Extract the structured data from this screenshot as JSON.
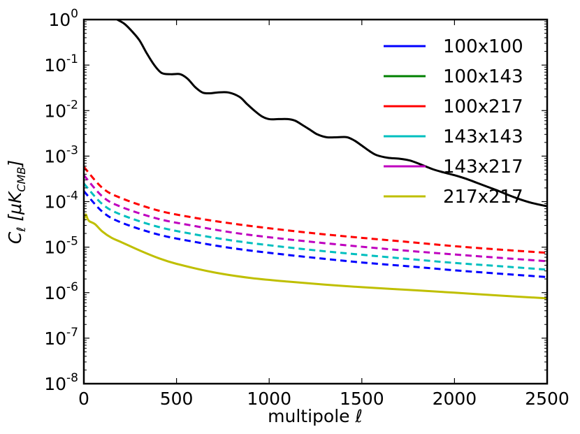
{
  "chart_data": {
    "type": "line",
    "xlabel": "multipole ℓ",
    "ylabel": "C_ℓ [μK_CMB]",
    "xlim": [
      0,
      2500
    ],
    "ylim": [
      1e-08,
      1
    ],
    "yscale": "log",
    "grid": false,
    "legend_position": "top-right",
    "x_ticks": [
      "0",
      "500",
      "1000",
      "1500",
      "2000",
      "2500"
    ],
    "y_ticks": [
      {
        "base": "10",
        "exp": "-8"
      },
      {
        "base": "10",
        "exp": "-7"
      },
      {
        "base": "10",
        "exp": "-6"
      },
      {
        "base": "10",
        "exp": "-5"
      },
      {
        "base": "10",
        "exp": "-4"
      },
      {
        "base": "10",
        "exp": "-3"
      },
      {
        "base": "10",
        "exp": "-2"
      },
      {
        "base": "10",
        "exp": "-1"
      },
      {
        "base": "10",
        "exp": "0"
      }
    ],
    "series": [
      {
        "name": "100x100",
        "color": "#0000ff",
        "style": "dashed",
        "x": [
          0,
          100,
          200,
          400,
          600,
          800,
          1000,
          1250,
          1500,
          1750,
          2000,
          2250,
          2500
        ],
        "y": [
          0.00017,
          6e-05,
          3.5e-05,
          1.9e-05,
          1.3e-05,
          9.5e-06,
          7.5e-06,
          5.8e-06,
          4.6e-06,
          3.8e-06,
          3.1e-06,
          2.6e-06,
          2.2e-06
        ]
      },
      {
        "name": "100x143",
        "color": "#008000",
        "style": "dashed",
        "x": [],
        "y": []
      },
      {
        "name": "100x217",
        "color": "#ff0000",
        "style": "dashed",
        "x": [
          0,
          100,
          200,
          400,
          600,
          800,
          1000,
          1250,
          1500,
          1750,
          2000,
          2250,
          2500
        ],
        "y": [
          0.00058,
          0.0002,
          0.00012,
          6.4e-05,
          4.4e-05,
          3.3e-05,
          2.6e-05,
          2e-05,
          1.6e-05,
          1.3e-05,
          1.05e-05,
          8.8e-06,
          7.5e-06
        ]
      },
      {
        "name": "143x143",
        "color": "#00bfbf",
        "style": "dashed",
        "x": [
          0,
          100,
          200,
          400,
          600,
          800,
          1000,
          1250,
          1500,
          1750,
          2000,
          2250,
          2500
        ],
        "y": [
          0.00025,
          8.8e-05,
          5.2e-05,
          2.8e-05,
          1.9e-05,
          1.4e-05,
          1.1e-05,
          8.5e-06,
          6.8e-06,
          5.5e-06,
          4.5e-06,
          3.8e-06,
          3.2e-06
        ]
      },
      {
        "name": "143x217",
        "color": "#bf00bf",
        "style": "dashed",
        "x": [
          0,
          100,
          200,
          400,
          600,
          800,
          1000,
          1250,
          1500,
          1750,
          2000,
          2250,
          2500
        ],
        "y": [
          0.00038,
          0.00013,
          7.7e-05,
          4.2e-05,
          2.9e-05,
          2.1e-05,
          1.65e-05,
          1.28e-05,
          1.02e-05,
          8.3e-06,
          6.9e-06,
          5.8e-06,
          4.9e-06
        ]
      },
      {
        "name": "217x217",
        "color": "#bfbf00",
        "style": "solid",
        "x": [
          0,
          10,
          20,
          30,
          60,
          100,
          150,
          200,
          300,
          400,
          500,
          700,
          900,
          1100,
          1300,
          1500,
          1750,
          2000,
          2250,
          2500
        ],
        "y": [
          3.8e-05,
          5.2e-05,
          4.2e-05,
          3.7e-05,
          3.2e-05,
          2.2e-05,
          1.6e-05,
          1.3e-05,
          8.5e-06,
          5.8e-06,
          4.3e-06,
          2.8e-06,
          2.1e-06,
          1.75e-06,
          1.5e-06,
          1.32e-06,
          1.15e-06,
          1e-06,
          8.6e-07,
          7.5e-07
        ]
      },
      {
        "name": "",
        "color": "#000000",
        "style": "solid",
        "x": [
          0,
          150,
          180,
          220,
          260,
          300,
          340,
          380,
          420,
          470,
          520,
          560,
          600,
          640,
          680,
          720,
          780,
          840,
          880,
          920,
          960,
          1000,
          1050,
          1100,
          1140,
          1180,
          1220,
          1260,
          1310,
          1370,
          1420,
          1460,
          1500,
          1540,
          1580,
          1640,
          1700,
          1760,
          1820,
          1880,
          1940,
          2000,
          2060,
          2120,
          2180,
          2240,
          2300,
          2360,
          2420,
          2500
        ],
        "y": [
          1.2,
          1.2,
          1.0,
          0.8,
          0.55,
          0.35,
          0.18,
          0.1,
          0.067,
          0.063,
          0.063,
          0.05,
          0.033,
          0.025,
          0.024,
          0.025,
          0.025,
          0.02,
          0.014,
          0.01,
          0.0075,
          0.0065,
          0.0065,
          0.0065,
          0.006,
          0.0048,
          0.0038,
          0.003,
          0.0026,
          0.0026,
          0.0026,
          0.0022,
          0.0017,
          0.0013,
          0.00105,
          0.00092,
          0.00088,
          0.0008,
          0.00065,
          0.00052,
          0.00044,
          0.00038,
          0.00032,
          0.00026,
          0.00021,
          0.00017,
          0.000135,
          0.00011,
          9.3e-05,
          7.9e-05
        ]
      }
    ]
  }
}
